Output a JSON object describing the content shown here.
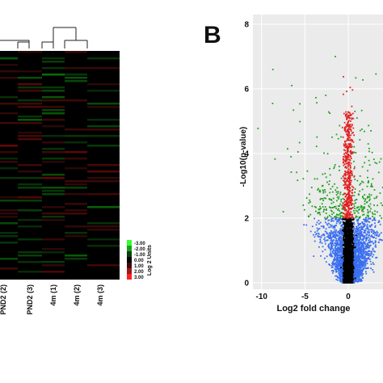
{
  "chart_data": [
    {
      "type": "heatmap",
      "columns": [
        "PND2 (2)",
        "PND2 (3)",
        "4m (1)",
        "4m (2)",
        "4m (3)"
      ],
      "colorbar": {
        "title": "Log 2 Units",
        "ticks": [
          "-3.00",
          "-2.00",
          "-1.00",
          "0.00",
          "1.00",
          "2.00",
          "3.00"
        ],
        "colors": [
          "#33ff33",
          "#18a018",
          "#0a400a",
          "#000000",
          "#400a0a",
          "#a01818",
          "#ff2020"
        ]
      },
      "dendrogram": true
    },
    {
      "type": "scatter",
      "panel_label": "B",
      "xlabel": "Log2 fold change",
      "ylabel": "-Log10(p-value)",
      "xlim": [
        -11,
        4
      ],
      "ylim": [
        -0.2,
        8.3
      ],
      "xticks": [
        -10,
        -5,
        0
      ],
      "yticks": [
        0,
        2,
        4,
        6,
        8
      ],
      "grid": true,
      "background": "#ebebeb",
      "groups": [
        {
          "color": "#000000",
          "description_region": "|log2FC| < 0.6, p < 0.01"
        },
        {
          "color": "#e02020",
          "description_region": "|log2FC| < 0.6, -log10p > 2"
        },
        {
          "color": "#22a022",
          "description_region": "|log2FC| > 0.6, -log10p > 2"
        },
        {
          "color": "#3a6ff0",
          "description_region": "|log2FC| > 0.6, -log10p < 2"
        }
      ],
      "outliers": [
        {
          "x": -8.7,
          "y": 6.6
        },
        {
          "x": -1.5,
          "y": 7.0
        },
        {
          "x": -2.6,
          "y": 5.8
        },
        {
          "x": -6.6,
          "y": 3.9
        },
        {
          "x": -7.5,
          "y": 2.2
        },
        {
          "x": -5.2,
          "y": 2.4
        }
      ]
    }
  ]
}
